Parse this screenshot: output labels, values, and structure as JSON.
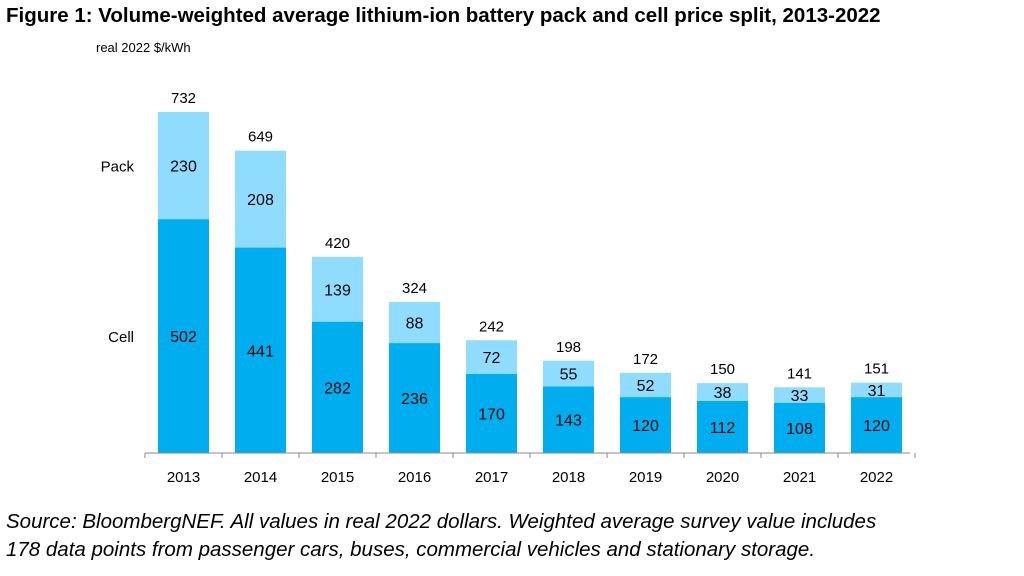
{
  "chart_data": {
    "type": "bar",
    "stacked": true,
    "title": "Figure 1: Volume-weighted average lithium-ion battery pack and cell price split, 2013-2022",
    "ylabel": "real 2022 $/kWh",
    "categories": [
      "2013",
      "2014",
      "2015",
      "2016",
      "2017",
      "2018",
      "2019",
      "2020",
      "2021",
      "2022"
    ],
    "series": [
      {
        "name": "Cell",
        "values": [
          502,
          441,
          282,
          236,
          170,
          143,
          120,
          112,
          108,
          120
        ],
        "color": "#00AEEF"
      },
      {
        "name": "Pack",
        "values": [
          230,
          208,
          139,
          88,
          72,
          55,
          52,
          38,
          33,
          31
        ],
        "color": "#8FDCFF"
      }
    ],
    "totals": [
      732,
      649,
      420,
      324,
      242,
      198,
      172,
      150,
      141,
      151
    ],
    "legend_placement": "left",
    "grid": false
  },
  "source_lines": [
    "Source: BloombergNEF. All values in real 2022 dollars. Weighted average survey value includes",
    "178 data points from passenger cars, buses, commercial vehicles and stationary storage."
  ]
}
